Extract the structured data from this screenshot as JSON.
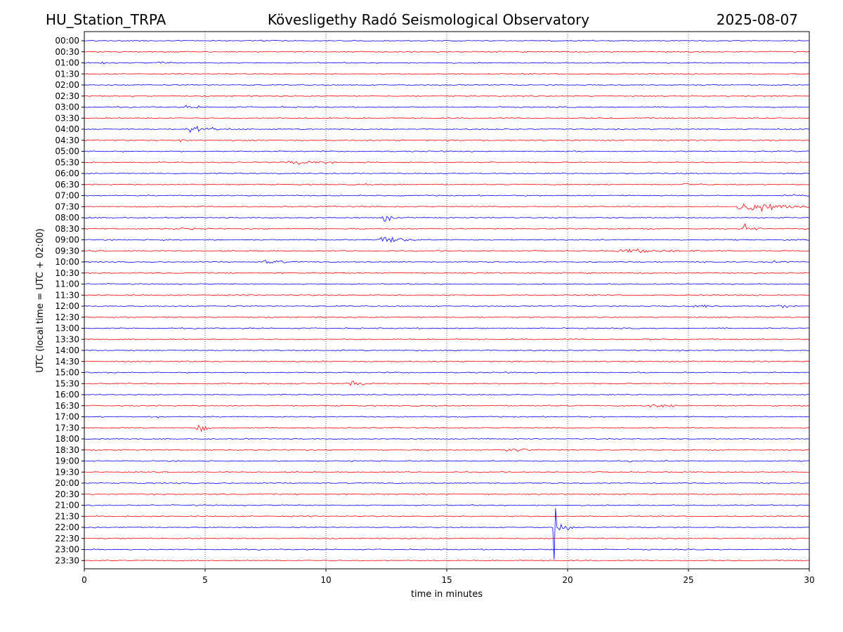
{
  "chart_data": {
    "type": "line",
    "header_left": "HU_Station_TRPA",
    "title": "Kövesligethy Radó Seismological Observatory",
    "header_right": "2025-08-07",
    "xlabel": "time in minutes",
    "ylabel": "UTC (local time = UTC + 02:00)",
    "xlim": [
      0,
      30
    ],
    "x_ticks": [
      0,
      5,
      10,
      15,
      20,
      25,
      30
    ],
    "x_gridlines": [
      5,
      10,
      15,
      20,
      25
    ],
    "grid": "vertical dotted lines at x ticks",
    "row_labels": [
      "00:00",
      "00:30",
      "01:00",
      "01:30",
      "02:00",
      "02:30",
      "03:00",
      "03:30",
      "04:00",
      "04:30",
      "05:00",
      "05:30",
      "06:00",
      "06:30",
      "07:00",
      "07:30",
      "08:00",
      "08:30",
      "09:00",
      "09:30",
      "10:00",
      "10:30",
      "11:00",
      "11:30",
      "12:00",
      "12:30",
      "13:00",
      "13:30",
      "14:00",
      "14:30",
      "15:00",
      "15:30",
      "16:00",
      "16:30",
      "17:00",
      "17:30",
      "18:00",
      "18:30",
      "19:00",
      "19:30",
      "20:00",
      "20:30",
      "21:00",
      "21:30",
      "22:00",
      "22:30",
      "23:00",
      "23:30"
    ],
    "trace_colors": [
      "#0000ff",
      "#ff0000"
    ],
    "events": [
      {
        "row": "01:00",
        "start": 0.6,
        "duration": 0.9,
        "amplitude": 0.25
      },
      {
        "row": "01:00",
        "start": 2.9,
        "duration": 1.4,
        "amplitude": 0.3
      },
      {
        "row": "02:30",
        "start": 1.9,
        "duration": 0.8,
        "amplitude": 0.25
      },
      {
        "row": "03:00",
        "start": 4.0,
        "duration": 1.2,
        "amplitude": 0.3
      },
      {
        "row": "03:00",
        "start": 4.65,
        "duration": 0.15,
        "amplitude": 1.2,
        "impulsive": true
      },
      {
        "row": "04:00",
        "start": 4.0,
        "duration": 2.5,
        "amplitude": 0.55
      },
      {
        "row": "04:30",
        "start": 3.9,
        "duration": 0.5,
        "amplitude": 0.55
      },
      {
        "row": "05:30",
        "start": 8.3,
        "duration": 2.5,
        "amplitude": 0.45
      },
      {
        "row": "05:30",
        "start": 11.0,
        "duration": 0.3,
        "amplitude": 0.15
      },
      {
        "row": "05:30",
        "start": 16.3,
        "duration": 0.2,
        "amplitude": 0.15
      },
      {
        "row": "06:30",
        "start": 11.6,
        "duration": 0.2,
        "amplitude": 0.3
      },
      {
        "row": "06:30",
        "start": 24.6,
        "duration": 1.8,
        "amplitude": 0.3
      },
      {
        "row": "07:00",
        "start": 6.8,
        "duration": 1.5,
        "amplitude": 0.2
      },
      {
        "row": "07:00",
        "start": 29.2,
        "duration": 0.8,
        "amplitude": 0.3
      },
      {
        "row": "07:30",
        "start": 4.8,
        "duration": 0.2,
        "amplitude": 0.15
      },
      {
        "row": "07:30",
        "start": 10.2,
        "duration": 1.0,
        "amplitude": 0.15
      },
      {
        "row": "07:30",
        "start": 26.9,
        "duration": 3.1,
        "amplitude": 1.0
      },
      {
        "row": "08:00",
        "start": 0.0,
        "duration": 1.0,
        "amplitude": 0.3
      },
      {
        "row": "08:00",
        "start": 12.3,
        "duration": 0.8,
        "amplitude": 0.7
      },
      {
        "row": "08:30",
        "start": 3.8,
        "duration": 1.8,
        "amplitude": 0.3
      },
      {
        "row": "08:30",
        "start": 27.2,
        "duration": 0.8,
        "amplitude": 0.8
      },
      {
        "row": "09:00",
        "start": 3.0,
        "duration": 1.8,
        "amplitude": 0.25
      },
      {
        "row": "09:00",
        "start": 12.1,
        "duration": 1.6,
        "amplitude": 0.95
      },
      {
        "row": "09:30",
        "start": 21.6,
        "duration": 6.0,
        "amplitude": 0.35
      },
      {
        "row": "10:00",
        "start": 7.3,
        "duration": 1.5,
        "amplitude": 0.4
      },
      {
        "row": "10:00",
        "start": 27.9,
        "duration": 1.8,
        "amplitude": 0.35
      },
      {
        "row": "12:00",
        "start": 12.2,
        "duration": 0.6,
        "amplitude": 0.2
      },
      {
        "row": "12:00",
        "start": 25.0,
        "duration": 1.5,
        "amplitude": 0.4
      },
      {
        "row": "12:00",
        "start": 28.6,
        "duration": 1.4,
        "amplitude": 0.35
      },
      {
        "row": "12:30",
        "start": 2.4,
        "duration": 0.3,
        "amplitude": 0.3
      },
      {
        "row": "15:00",
        "start": 24.8,
        "duration": 0.3,
        "amplitude": 0.3
      },
      {
        "row": "15:30",
        "start": 7.2,
        "duration": 0.7,
        "amplitude": 0.25
      },
      {
        "row": "15:30",
        "start": 10.9,
        "duration": 1.4,
        "amplitude": 0.5
      },
      {
        "row": "16:30",
        "start": 22.8,
        "duration": 3.5,
        "amplitude": 0.35
      },
      {
        "row": "17:00",
        "start": 3.0,
        "duration": 0.4,
        "amplitude": 0.25
      },
      {
        "row": "17:30",
        "start": 4.6,
        "duration": 0.6,
        "amplitude": 0.9
      },
      {
        "row": "18:00",
        "start": 3.0,
        "duration": 0.3,
        "amplitude": 0.25
      },
      {
        "row": "18:30",
        "start": 17.3,
        "duration": 1.4,
        "amplitude": 0.55
      },
      {
        "row": "19:00",
        "start": 10.8,
        "duration": 1.3,
        "amplitude": 0.2
      },
      {
        "row": "19:00",
        "start": 16.7,
        "duration": 0.1,
        "amplitude": 0.3
      },
      {
        "row": "19:00",
        "start": 22.5,
        "duration": 0.3,
        "amplitude": 0.25
      },
      {
        "row": "21:00",
        "start": 9.1,
        "duration": 0.2,
        "amplitude": 0.2
      },
      {
        "row": "22:00",
        "start": 7.6,
        "duration": 0.2,
        "amplitude": 0.15
      },
      {
        "row": "22:00",
        "start": 19.4,
        "duration": 1.4,
        "amplitude": 1.6,
        "impulsive": true
      }
    ]
  }
}
